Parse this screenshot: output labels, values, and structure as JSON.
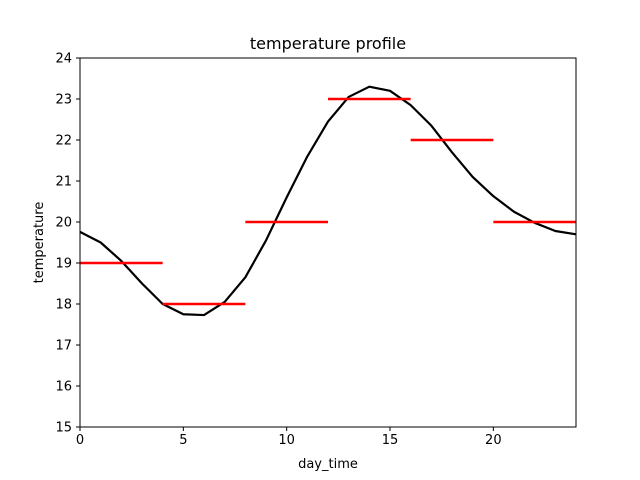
{
  "chart_data": {
    "type": "line",
    "title": "temperature profile",
    "xlabel": "day_time",
    "ylabel": "temperature",
    "xlim": [
      0,
      24
    ],
    "ylim": [
      15,
      24
    ],
    "x_ticks": [
      0,
      5,
      10,
      15,
      20
    ],
    "y_ticks": [
      15,
      16,
      17,
      18,
      19,
      20,
      21,
      22,
      23,
      24
    ],
    "grid": false,
    "series": [
      {
        "color": "#000000",
        "x": [
          0,
          1,
          2,
          3,
          4,
          5,
          6,
          7,
          8,
          9,
          10,
          11,
          12,
          13,
          14,
          15,
          16,
          17,
          18,
          19,
          20,
          21,
          22,
          23,
          24
        ],
        "y": [
          19.76,
          19.5,
          19.05,
          18.5,
          18.0,
          17.75,
          17.73,
          18.05,
          18.65,
          19.55,
          20.6,
          21.6,
          22.45,
          23.05,
          23.3,
          23.2,
          22.85,
          22.35,
          21.7,
          21.1,
          20.63,
          20.25,
          19.98,
          19.78,
          19.7
        ]
      }
    ],
    "steps": {
      "color": "#ff0000",
      "segments": [
        {
          "x0": 0,
          "x1": 4,
          "y": 19
        },
        {
          "x0": 4,
          "x1": 8,
          "y": 18
        },
        {
          "x0": 8,
          "x1": 12,
          "y": 20
        },
        {
          "x0": 12,
          "x1": 16,
          "y": 23
        },
        {
          "x0": 16,
          "x1": 20,
          "y": 22
        },
        {
          "x0": 20,
          "x1": 24,
          "y": 20
        }
      ]
    }
  }
}
